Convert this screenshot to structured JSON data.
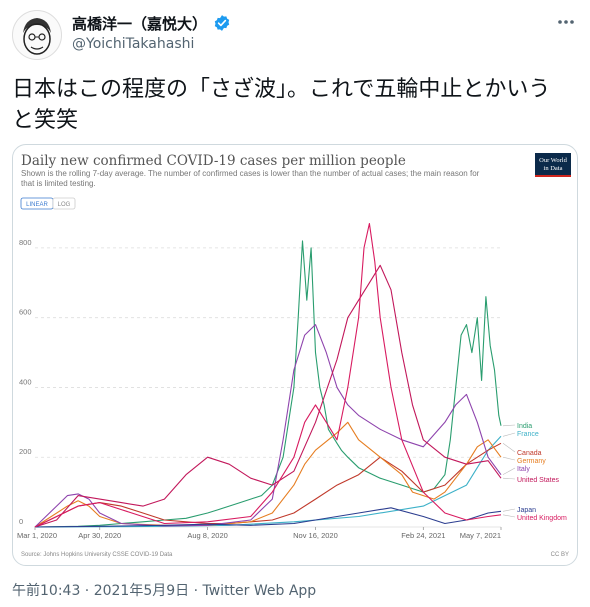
{
  "tweet": {
    "display_name": "高橋洋一（嘉悦大）",
    "handle": "@YoichiTakahashi",
    "more_icon": "more-horizontal-icon",
    "verified_icon": "verified-badge-icon",
    "text": "日本はこの程度の「さざ波」。これで五輪中止とかいうと笑笑",
    "timestamp": "午前10:43 · 2021年5月9日 · Twitter Web App",
    "accent_color": "#1d9bf0"
  },
  "chart_data": {
    "type": "line",
    "title": "Daily new confirmed COVID-19 cases per million people",
    "subtitle": "Shown is the rolling 7-day average. The number of confirmed cases is lower than the number of actual cases; the main reason for that is limited testing.",
    "logo_text": [
      "Our World",
      "in Data"
    ],
    "toggle": {
      "linear": "LINEAR",
      "log": "LOG"
    },
    "source": "Source: Johns Hopkins University CSSE COVID-19 Data",
    "license": "CC BY",
    "x_tick_labels": [
      "Mar 1, 2020",
      "Apr 30, 2020",
      "Aug 8, 2020",
      "Nov 16, 2020",
      "Feb 24, 2021",
      "May 7, 2021"
    ],
    "x_tick_dates": [
      0,
      60,
      160,
      260,
      360,
      432
    ],
    "y_ticks": [
      0,
      200,
      400,
      600,
      800
    ],
    "ylim": [
      0,
      900
    ],
    "xlim_days": [
      0,
      432
    ],
    "grid": true,
    "series": [
      {
        "name": "India",
        "color": "#2a9d6f",
        "x": [
          0,
          40,
          60,
          80,
          100,
          120,
          140,
          160,
          170,
          180,
          190,
          200,
          210,
          220,
          230,
          235,
          240,
          244,
          248,
          252,
          256,
          260,
          264,
          268,
          272,
          276,
          280,
          284,
          290,
          300,
          320,
          340,
          360,
          370,
          380,
          385,
          390,
          395,
          400,
          405,
          410,
          414,
          418,
          422,
          426,
          430,
          432
        ],
        "y": [
          0,
          2,
          5,
          10,
          15,
          20,
          25,
          40,
          50,
          60,
          70,
          80,
          90,
          120,
          200,
          300,
          400,
          600,
          820,
          650,
          800,
          500,
          400,
          350,
          280,
          260,
          240,
          220,
          200,
          170,
          140,
          120,
          100,
          110,
          150,
          250,
          400,
          550,
          580,
          500,
          600,
          420,
          660,
          520,
          450,
          320,
          290
        ]
      },
      {
        "name": "France",
        "color": "#3db1c8",
        "x": [
          0,
          60,
          120,
          180,
          240,
          300,
          360,
          400,
          420,
          432
        ],
        "y": [
          0,
          1,
          2,
          5,
          15,
          30,
          60,
          120,
          220,
          260
        ]
      },
      {
        "name": "Canada",
        "color": "#c0392b",
        "x": [
          0,
          40,
          60,
          80,
          100,
          120,
          140,
          160,
          180,
          200,
          220,
          240,
          260,
          280,
          300,
          320,
          340,
          360,
          380,
          400,
          420,
          432
        ],
        "y": [
          0,
          60,
          70,
          60,
          40,
          20,
          15,
          10,
          10,
          15,
          20,
          40,
          80,
          120,
          150,
          200,
          160,
          100,
          120,
          180,
          220,
          240
        ]
      },
      {
        "name": "Germany",
        "color": "#e67e22",
        "x": [
          0,
          30,
          40,
          50,
          60,
          80,
          120,
          160,
          200,
          220,
          240,
          250,
          260,
          280,
          290,
          300,
          320,
          340,
          350,
          360,
          370,
          380,
          400,
          410,
          420,
          432
        ],
        "y": [
          0,
          60,
          75,
          60,
          30,
          10,
          5,
          5,
          15,
          40,
          120,
          180,
          220,
          270,
          300,
          250,
          200,
          150,
          100,
          90,
          80,
          100,
          180,
          230,
          250,
          200
        ]
      },
      {
        "name": "Italy",
        "color": "#8e44ad",
        "x": [
          0,
          20,
          30,
          40,
          50,
          60,
          80,
          120,
          160,
          200,
          220,
          230,
          240,
          250,
          260,
          270,
          280,
          290,
          300,
          320,
          340,
          360,
          380,
          390,
          400,
          410,
          420,
          432
        ],
        "y": [
          0,
          60,
          90,
          95,
          80,
          40,
          10,
          3,
          5,
          20,
          80,
          250,
          450,
          550,
          580,
          500,
          400,
          350,
          320,
          280,
          250,
          230,
          300,
          350,
          380,
          300,
          200,
          150
        ]
      },
      {
        "name": "United States",
        "color": "#c2185b",
        "x": [
          0,
          20,
          40,
          60,
          80,
          100,
          120,
          140,
          160,
          180,
          200,
          220,
          240,
          260,
          280,
          290,
          300,
          310,
          320,
          330,
          340,
          350,
          360,
          380,
          400,
          420,
          432
        ],
        "y": [
          0,
          20,
          90,
          80,
          70,
          60,
          80,
          150,
          200,
          180,
          140,
          120,
          160,
          300,
          480,
          600,
          650,
          700,
          750,
          680,
          500,
          350,
          250,
          200,
          180,
          190,
          140
        ]
      },
      {
        "name": "Japan",
        "color": "#2c3e90",
        "x": [
          0,
          60,
          120,
          160,
          200,
          240,
          260,
          300,
          330,
          360,
          380,
          400,
          420,
          432
        ],
        "y": [
          0,
          2,
          5,
          8,
          5,
          10,
          20,
          40,
          55,
          30,
          10,
          20,
          40,
          45
        ]
      },
      {
        "name": "United Kingdom",
        "color": "#d81b60",
        "x": [
          0,
          20,
          40,
          60,
          80,
          120,
          160,
          200,
          220,
          240,
          250,
          260,
          270,
          280,
          290,
          300,
          305,
          310,
          315,
          320,
          330,
          340,
          360,
          380,
          400,
          420,
          432
        ],
        "y": [
          0,
          30,
          60,
          70,
          50,
          10,
          15,
          30,
          100,
          200,
          300,
          350,
          300,
          250,
          400,
          600,
          800,
          870,
          760,
          600,
          400,
          250,
          100,
          40,
          20,
          30,
          35
        ]
      }
    ]
  }
}
